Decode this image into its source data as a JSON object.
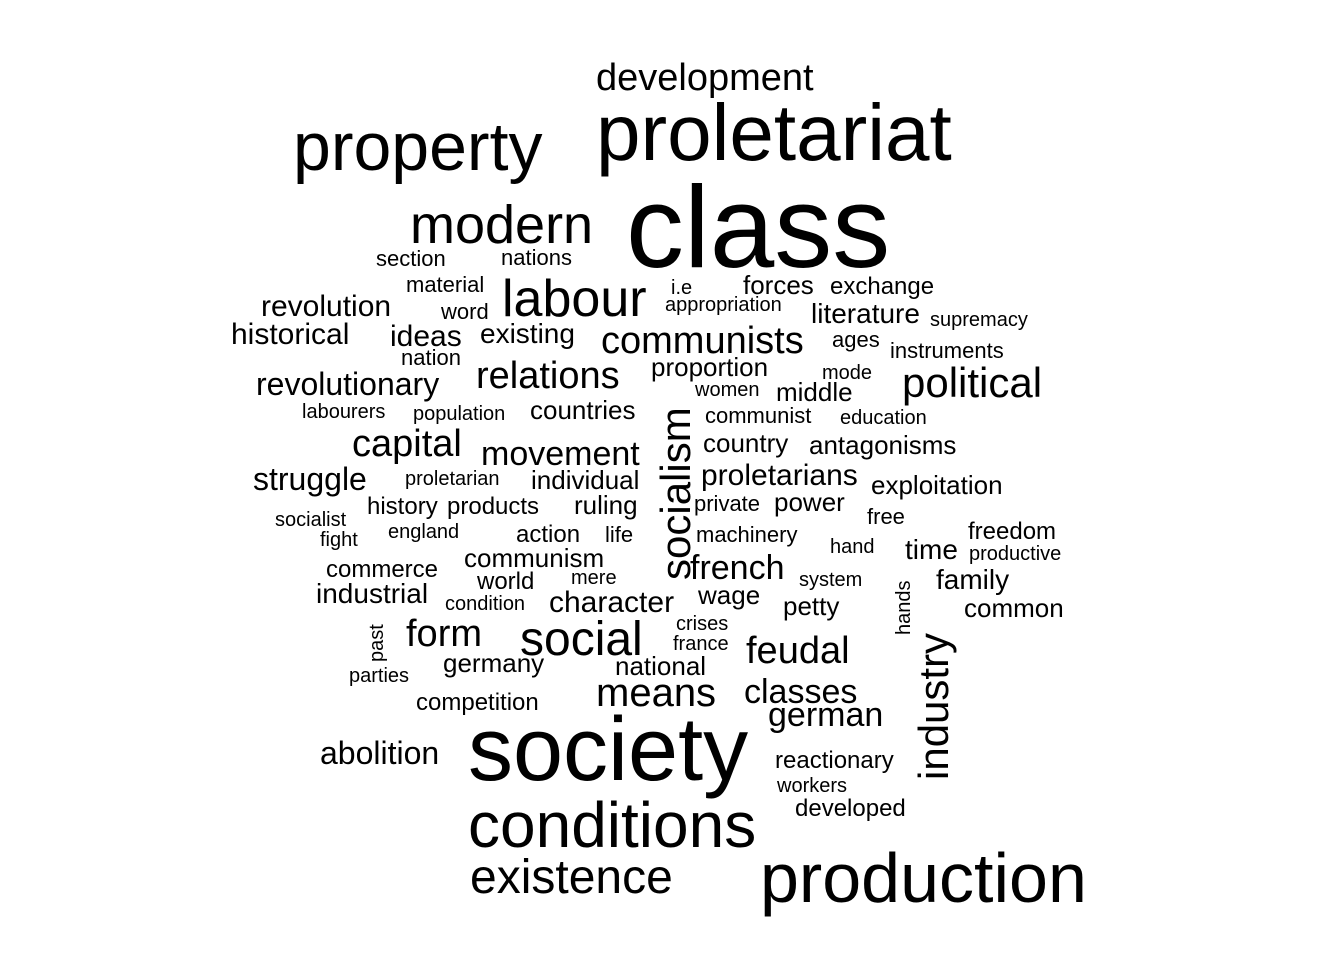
{
  "word_cloud": {
    "text_color": "#000000",
    "background_color": "#ffffff",
    "words": [
      {
        "text": "class",
        "vertical": false
      },
      {
        "text": "society",
        "vertical": false
      },
      {
        "text": "proletariat",
        "vertical": false
      },
      {
        "text": "production",
        "vertical": false
      },
      {
        "text": "property",
        "vertical": false
      },
      {
        "text": "conditions",
        "vertical": false
      },
      {
        "text": "modern",
        "vertical": false
      },
      {
        "text": "existence",
        "vertical": false
      },
      {
        "text": "labour",
        "vertical": false
      },
      {
        "text": "social",
        "vertical": false
      },
      {
        "text": "socialism",
        "vertical": true
      },
      {
        "text": "industry",
        "vertical": true
      },
      {
        "text": "means",
        "vertical": false
      },
      {
        "text": "political",
        "vertical": false
      },
      {
        "text": "development",
        "vertical": false
      },
      {
        "text": "relations",
        "vertical": false
      },
      {
        "text": "communists",
        "vertical": false
      },
      {
        "text": "feudal",
        "vertical": false
      },
      {
        "text": "capital",
        "vertical": false
      },
      {
        "text": "form",
        "vertical": false
      },
      {
        "text": "german",
        "vertical": false
      },
      {
        "text": "classes",
        "vertical": false
      },
      {
        "text": "movement",
        "vertical": false
      },
      {
        "text": "french",
        "vertical": false
      },
      {
        "text": "revolutionary",
        "vertical": false
      },
      {
        "text": "abolition",
        "vertical": false
      },
      {
        "text": "struggle",
        "vertical": false
      },
      {
        "text": "revolution",
        "vertical": false
      },
      {
        "text": "historical",
        "vertical": false
      },
      {
        "text": "ideas",
        "vertical": false
      },
      {
        "text": "existing",
        "vertical": false
      },
      {
        "text": "proletarians",
        "vertical": false
      },
      {
        "text": "character",
        "vertical": false
      },
      {
        "text": "literature",
        "vertical": false
      },
      {
        "text": "country",
        "vertical": false
      },
      {
        "text": "antagonisms",
        "vertical": false
      },
      {
        "text": "communism",
        "vertical": false
      },
      {
        "text": "ruling",
        "vertical": false
      },
      {
        "text": "countries",
        "vertical": false
      },
      {
        "text": "individual",
        "vertical": false
      },
      {
        "text": "proportion",
        "vertical": false
      },
      {
        "text": "middle",
        "vertical": false
      },
      {
        "text": "forces",
        "vertical": false
      },
      {
        "text": "exchange",
        "vertical": false
      },
      {
        "text": "exploitation",
        "vertical": false
      },
      {
        "text": "industrial",
        "vertical": false
      },
      {
        "text": "wage",
        "vertical": false
      },
      {
        "text": "power",
        "vertical": false
      },
      {
        "text": "petty",
        "vertical": false
      },
      {
        "text": "family",
        "vertical": false
      },
      {
        "text": "common",
        "vertical": false
      },
      {
        "text": "national",
        "vertical": false
      },
      {
        "text": "germany",
        "vertical": false
      },
      {
        "text": "reactionary",
        "vertical": false
      },
      {
        "text": "time",
        "vertical": false
      },
      {
        "text": "freedom",
        "vertical": false
      },
      {
        "text": "world",
        "vertical": false
      },
      {
        "text": "action",
        "vertical": false
      },
      {
        "text": "commerce",
        "vertical": false
      },
      {
        "text": "competition",
        "vertical": false
      },
      {
        "text": "developed",
        "vertical": false
      },
      {
        "text": "section",
        "vertical": false
      },
      {
        "text": "nations",
        "vertical": false
      },
      {
        "text": "material",
        "vertical": false
      },
      {
        "text": "word",
        "vertical": false
      },
      {
        "text": "nation",
        "vertical": false
      },
      {
        "text": "products",
        "vertical": false
      },
      {
        "text": "history",
        "vertical": false
      },
      {
        "text": "machinery",
        "vertical": false
      },
      {
        "text": "communist",
        "vertical": false
      },
      {
        "text": "instruments",
        "vertical": false
      },
      {
        "text": "ages",
        "vertical": false
      },
      {
        "text": "supremacy",
        "vertical": false
      },
      {
        "text": "appropriation",
        "vertical": false
      },
      {
        "text": "i.e",
        "vertical": false
      },
      {
        "text": "women",
        "vertical": false
      },
      {
        "text": "mode",
        "vertical": false
      },
      {
        "text": "education",
        "vertical": false
      },
      {
        "text": "private",
        "vertical": false
      },
      {
        "text": "free",
        "vertical": false
      },
      {
        "text": "hand",
        "vertical": false
      },
      {
        "text": "productive",
        "vertical": false
      },
      {
        "text": "system",
        "vertical": false
      },
      {
        "text": "hands",
        "vertical": true
      },
      {
        "text": "crises",
        "vertical": false
      },
      {
        "text": "france",
        "vertical": false
      },
      {
        "text": "workers",
        "vertical": false
      },
      {
        "text": "labourers",
        "vertical": false
      },
      {
        "text": "population",
        "vertical": false
      },
      {
        "text": "proletarian",
        "vertical": false
      },
      {
        "text": "socialist",
        "vertical": false
      },
      {
        "text": "england",
        "vertical": false
      },
      {
        "text": "life",
        "vertical": false
      },
      {
        "text": "fight",
        "vertical": false
      },
      {
        "text": "mere",
        "vertical": false
      },
      {
        "text": "condition",
        "vertical": false
      },
      {
        "text": "past",
        "vertical": true
      },
      {
        "text": "parties",
        "vertical": false
      }
    ]
  }
}
